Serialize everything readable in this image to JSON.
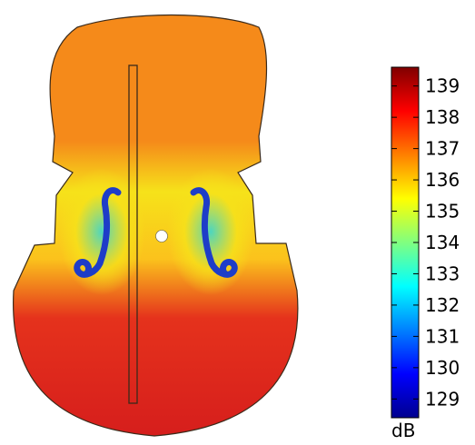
{
  "colorbar": {
    "unit": "dB",
    "ticks": [
      "129",
      "130",
      "131",
      "132",
      "133",
      "134",
      "135",
      "136",
      "137",
      "138",
      "139"
    ],
    "min": 128.4,
    "max": 139.6,
    "colormap": [
      "#00008f",
      "#0000ff",
      "#0080ff",
      "#00ffff",
      "#80ff80",
      "#ffff00",
      "#ff8000",
      "#ff0000",
      "#800000"
    ]
  },
  "plot": {
    "colors": {
      "top_bout": "#f58a1a",
      "upper_waist": "#fbc21c",
      "mid_yellow": "#f6e21a",
      "bottom_bout": "#e5321c",
      "bottom_edge": "#d61e1c",
      "f_hole_inner": "#1e3dc8",
      "f_hole_halo": "#44d6c8"
    }
  }
}
